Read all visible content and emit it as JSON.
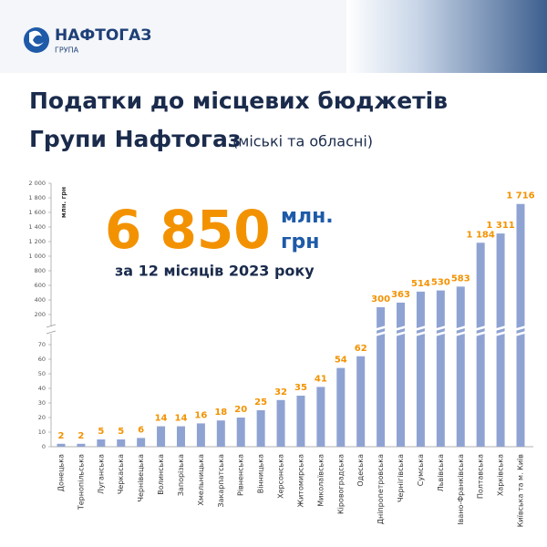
{
  "header": {
    "logo_text": "НАФТОГАЗ",
    "logo_sub": "ГРУПА"
  },
  "chart_data": {
    "type": "bar",
    "title": [
      "Податки до місцевих бюджетів",
      "Групи Нафтогаз"
    ],
    "subtitle": "(міські та обласні)",
    "total": {
      "value": 6850,
      "label": "6 850"
    },
    "total_unit": [
      "млн.",
      "грн"
    ],
    "period": "за 12 місяців 2023 року",
    "y_unit": "млн. грн",
    "color": "#8fa3d3",
    "label_color": "#f39200",
    "categories": [
      "Донецька",
      "Тернопільська",
      "Луганська",
      "Черкаська",
      "Чернівецька",
      "Волинська",
      "Запорізька",
      "Хмельницька",
      "Закарпатська",
      "Рівненська",
      "Вінницька",
      "Херсонська",
      "Житомирська",
      "Миколаївська",
      "Кіровоградська",
      "Одеська",
      "Дніпропетровська",
      "Чернігівська",
      "Сумська",
      "Львівська",
      "Івано-Франківська",
      "Полтавська",
      "Харківська",
      "Київська та м. Київ"
    ],
    "values": [
      2,
      2,
      5,
      5,
      6,
      14,
      14,
      16,
      18,
      20,
      25,
      32,
      35,
      41,
      54,
      62,
      300,
      363,
      514,
      530,
      583,
      1184,
      1311,
      1716
    ],
    "value_labels": [
      "2",
      "2",
      "5",
      "5",
      "6",
      "14",
      "14",
      "16",
      "18",
      "20",
      "25",
      "32",
      "35",
      "41",
      "54",
      "62",
      "300",
      "363",
      "514",
      "530",
      "583",
      "1 184",
      "1 311",
      "1 716"
    ],
    "axis_break": {
      "lower": {
        "ylim": [
          0,
          75
        ],
        "yticks": [
          0,
          10,
          20,
          30,
          40,
          50,
          60,
          70
        ]
      },
      "upper": {
        "ylim": [
          100,
          2000
        ],
        "yticks": [
          200,
          400,
          600,
          800,
          {
            "value": 1000,
            "label": "1 000"
          },
          {
            "value": 1200,
            "label": "1 200"
          },
          {
            "value": 1400,
            "label": "1 400"
          },
          {
            "value": 1600,
            "label": "1 600"
          },
          {
            "value": 1800,
            "label": "1 800"
          },
          {
            "value": 2000,
            "label": "2 000"
          }
        ]
      }
    }
  }
}
